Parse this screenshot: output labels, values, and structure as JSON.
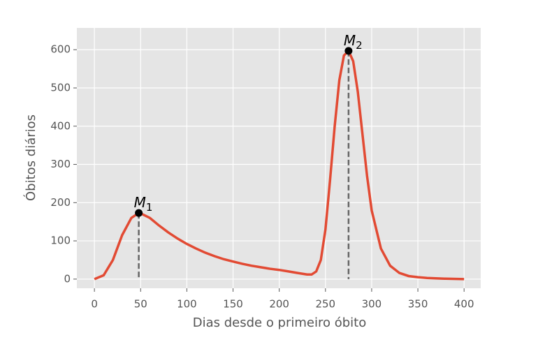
{
  "chart_data": {
    "type": "line",
    "xlabel": "Dias desde o primeiro óbito",
    "ylabel": "Óbitos diários",
    "x": [
      0,
      10,
      20,
      30,
      40,
      48,
      50,
      60,
      70,
      80,
      90,
      100,
      110,
      120,
      130,
      140,
      150,
      160,
      170,
      180,
      190,
      200,
      210,
      220,
      230,
      235,
      240,
      245,
      250,
      255,
      260,
      265,
      270,
      275,
      280,
      285,
      290,
      295,
      300,
      310,
      320,
      330,
      340,
      350,
      360,
      380,
      400
    ],
    "values": [
      0,
      10,
      50,
      115,
      160,
      173,
      172,
      160,
      140,
      122,
      106,
      92,
      80,
      69,
      60,
      52,
      46,
      40,
      35,
      31,
      27,
      24,
      20,
      16,
      12,
      12,
      20,
      50,
      130,
      260,
      400,
      520,
      585,
      597,
      570,
      490,
      380,
      270,
      180,
      80,
      35,
      16,
      8,
      5,
      3,
      1,
      0
    ],
    "color": "#e24a33",
    "annotations": [
      {
        "text": "M",
        "sub": "1",
        "x": 48,
        "y": 173
      },
      {
        "text": "M",
        "sub": "2",
        "x": 275,
        "y": 597
      }
    ],
    "xlim": [
      -19,
      418
    ],
    "ylim": [
      -24,
      657
    ],
    "xticks": [
      0,
      50,
      100,
      150,
      200,
      250,
      300,
      350,
      400
    ],
    "yticks": [
      0,
      100,
      200,
      300,
      400,
      500,
      600
    ],
    "grid": true
  }
}
